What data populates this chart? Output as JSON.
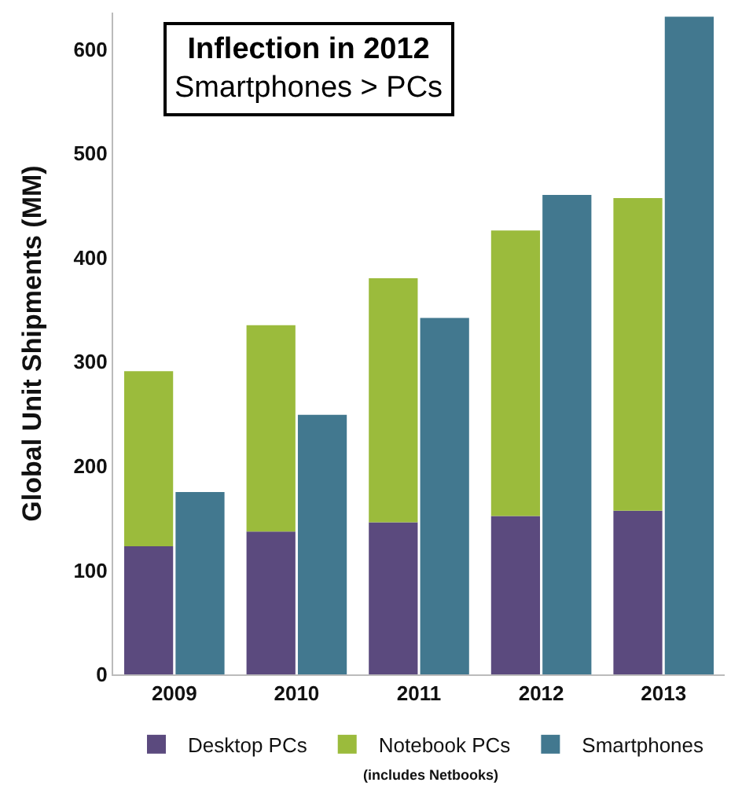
{
  "chart_data": [
    {
      "type": "bar",
      "title": "Inflection in 2012",
      "subtitle": "Smartphones > PCs",
      "ylabel": "Global Unit Shipments (MM)",
      "categories": [
        "2009",
        "2010",
        "2011",
        "2012",
        "2013"
      ],
      "stacked": true,
      "series": [
        {
          "name": "Desktop PCs",
          "color": "#5b4a7e",
          "values": [
            123,
            137,
            146,
            152,
            157
          ]
        },
        {
          "name": "Notebook PCs",
          "color": "#9bbb3c",
          "values": [
            168,
            198,
            234,
            274,
            300
          ]
        }
      ],
      "annotations": [
        "(includes Netbooks)"
      ],
      "ylim": [
        0,
        635
      ],
      "yticks": [
        0,
        100,
        200,
        300,
        400,
        500,
        600
      ],
      "legend": "bottom"
    },
    {
      "type": "bar",
      "categories": [
        "2009",
        "2010",
        "2011",
        "2012",
        "2013"
      ],
      "series": [
        {
          "name": "Smartphones",
          "color": "#42788f",
          "values": [
            175,
            249,
            342,
            460,
            631
          ]
        }
      ],
      "ylim": [
        0,
        635
      ],
      "yticks": [
        0,
        100,
        200,
        300,
        400,
        500,
        600
      ],
      "tick_labels": false,
      "legend": "bottom"
    }
  ]
}
